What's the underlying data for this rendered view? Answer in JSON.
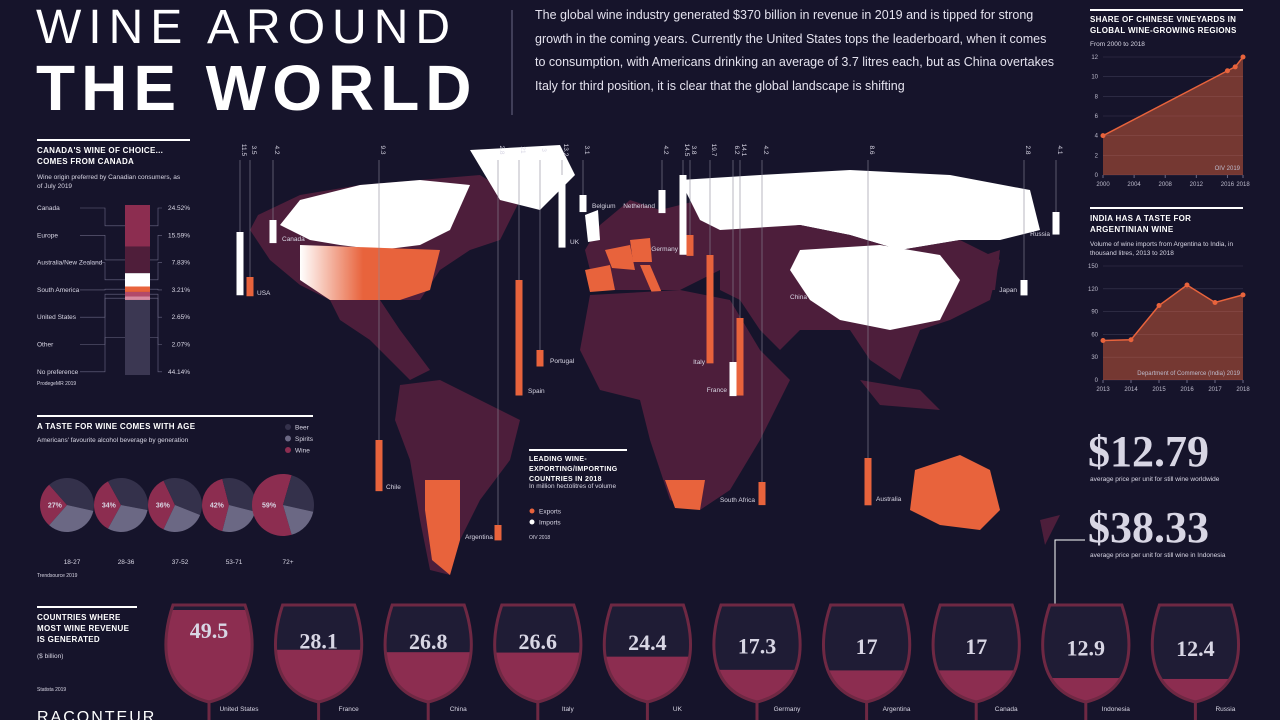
{
  "header": {
    "title_line1": "WINE AROUND",
    "title_line2": "THE WORLD",
    "intro": "The global wine industry generated $370 billion in revenue in 2019 and is tipped for strong growth in the coming years. Currently the United States tops the leaderboard, when it comes to consumption, with Americans drinking an average of 3.7 litres each, but as China overtakes Italy for third position, it is clear that the global landscape is shifting"
  },
  "chart_data": [
    {
      "type": "line",
      "title": "SHARE OF CHINESE VINEYARDS IN GLOBAL WINE-GROWING REGIONS",
      "subtitle": "From 2000 to 2018",
      "x": [
        2000,
        2016,
        2017,
        2018
      ],
      "values": [
        4,
        10.6,
        11,
        12
      ],
      "xlim": [
        2000,
        2018
      ],
      "xticks": [
        2000,
        2004,
        2008,
        2012,
        2016,
        2018
      ],
      "ylim": [
        0,
        12
      ],
      "yticks": [
        0,
        2,
        4,
        6,
        8,
        10,
        12
      ],
      "source": "OIV 2019",
      "color": "#e8633c"
    },
    {
      "type": "line",
      "title": "INDIA HAS A TASTE FOR ARGENTINIAN WINE",
      "subtitle": "Volume of wine imports from Argentina to India, in thousand litres, 2013 to 2018",
      "x": [
        2013,
        2014,
        2015,
        2016,
        2017,
        2018
      ],
      "values": [
        52,
        53,
        98,
        125,
        102,
        112
      ],
      "xlim": [
        2013,
        2018
      ],
      "xticks": [
        2013,
        2014,
        2015,
        2016,
        2017,
        2018
      ],
      "ylim": [
        0,
        150
      ],
      "yticks": [
        0,
        30,
        60,
        90,
        120,
        150
      ],
      "source": "Department of Commerce (India) 2019",
      "color": "#e8633c"
    },
    {
      "type": "stacked-bar",
      "title": "CANADA'S WINE OF CHOICE... COMES FROM CANADA",
      "subtitle": "Wine origin preferred by Canadian consumers, as of July 2019",
      "categories": [
        "Canada",
        "Europe",
        "Australia/New Zealand",
        "South America",
        "United States",
        "Other",
        "No preference"
      ],
      "values": [
        24.52,
        15.59,
        7.83,
        3.21,
        2.65,
        2.07,
        44.14
      ],
      "value_labels": [
        "24.52%",
        "15.59%",
        "7.83%",
        "3.21%",
        "2.65%",
        "2.07%",
        "44.14%"
      ],
      "colors": [
        "#8c2d50",
        "#4f1e3a",
        "#ffffff",
        "#e8633c",
        "#b24a6a",
        "#d78aa0",
        "#3b3752"
      ],
      "source": "ProdegeMR 2019"
    },
    {
      "type": "pie",
      "title": "A TASTE FOR WINE COMES WITH AGE",
      "subtitle": "Americans' favourite alcohol beverage by generation",
      "categories": [
        "18-27",
        "28-36",
        "37-52",
        "53-71",
        "72+"
      ],
      "series": [
        {
          "name": "Beer",
          "color": "#34314b",
          "values": [
            40,
            36,
            38,
            33,
            24
          ]
        },
        {
          "name": "Spirits",
          "color": "#6b6884",
          "values": [
            33,
            30,
            26,
            25,
            17
          ]
        },
        {
          "name": "Wine",
          "color": "#8c2d50",
          "values": [
            27,
            34,
            36,
            42,
            59
          ],
          "value_labels": [
            "27%",
            "34%",
            "36%",
            "42%",
            "59%"
          ]
        }
      ],
      "source": "Trendsource 2019"
    },
    {
      "type": "glass-bar",
      "title": "COUNTRIES WHERE MOST WINE REVENUE IS GENERATED",
      "subtitle": "($ billion)",
      "categories": [
        "United States",
        "France",
        "China",
        "Italy",
        "UK",
        "Germany",
        "Argentina",
        "Canada",
        "Indonesia",
        "Russia"
      ],
      "values": [
        49.5,
        28.1,
        26.8,
        26.6,
        24.4,
        17.3,
        17,
        17,
        12.9,
        12.4
      ],
      "color": "#8c2d50",
      "source": "Statista 2019"
    },
    {
      "type": "map-bar",
      "title": "LEADING WINE-EXPORTING/IMPORTING COUNTRIES IN 2018",
      "subtitle": "In million hectolitres of volume",
      "categories": [
        "USA",
        "Canada",
        "Chile",
        "Argentina",
        "Spain",
        "Portugal",
        "UK",
        "Belgium",
        "Netherland",
        "Germany",
        "Italy",
        "France",
        "South Africa",
        "China",
        "Australia",
        "Japan",
        "Russia"
      ],
      "series": [
        {
          "name": "Exports",
          "color": "#e8633c",
          "values": [
            3.5,
            null,
            9.3,
            2.8,
            21,
            3,
            null,
            null,
            null,
            3.8,
            19.7,
            14.1,
            4.2,
            null,
            8.6,
            null,
            null
          ]
        },
        {
          "name": "Imports",
          "color": "#ffffff",
          "values": [
            11.5,
            4.2,
            null,
            null,
            null,
            null,
            13.2,
            3.1,
            4.2,
            14.5,
            null,
            6.2,
            null,
            null,
            null,
            2.8,
            4.1
          ]
        }
      ],
      "source": "OIV 2018"
    }
  ],
  "stats": [
    {
      "text": "$12.79",
      "caption": "average price per unit for still wine worldwide"
    },
    {
      "text": "$38.33",
      "caption": "average price per unit for still wine in Indonesia"
    }
  ],
  "footer": {
    "logo": "RACONTEUR"
  }
}
